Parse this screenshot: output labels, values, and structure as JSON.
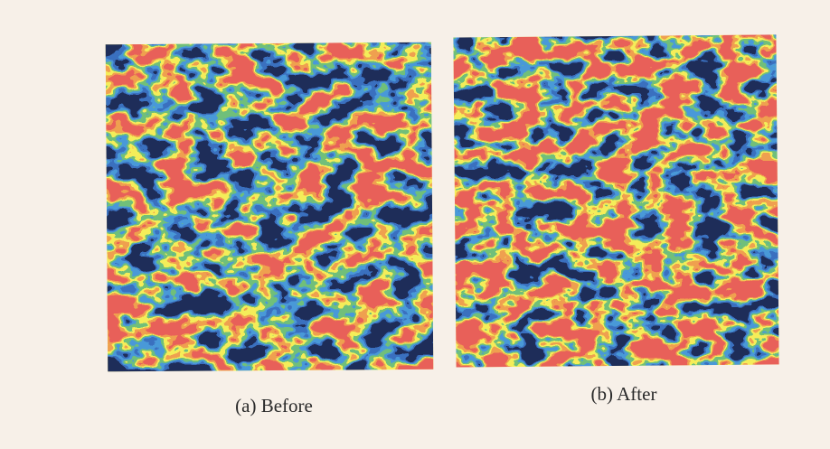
{
  "panels": [
    {
      "caption": "(a) Before"
    },
    {
      "caption": "(b) After"
    }
  ]
}
